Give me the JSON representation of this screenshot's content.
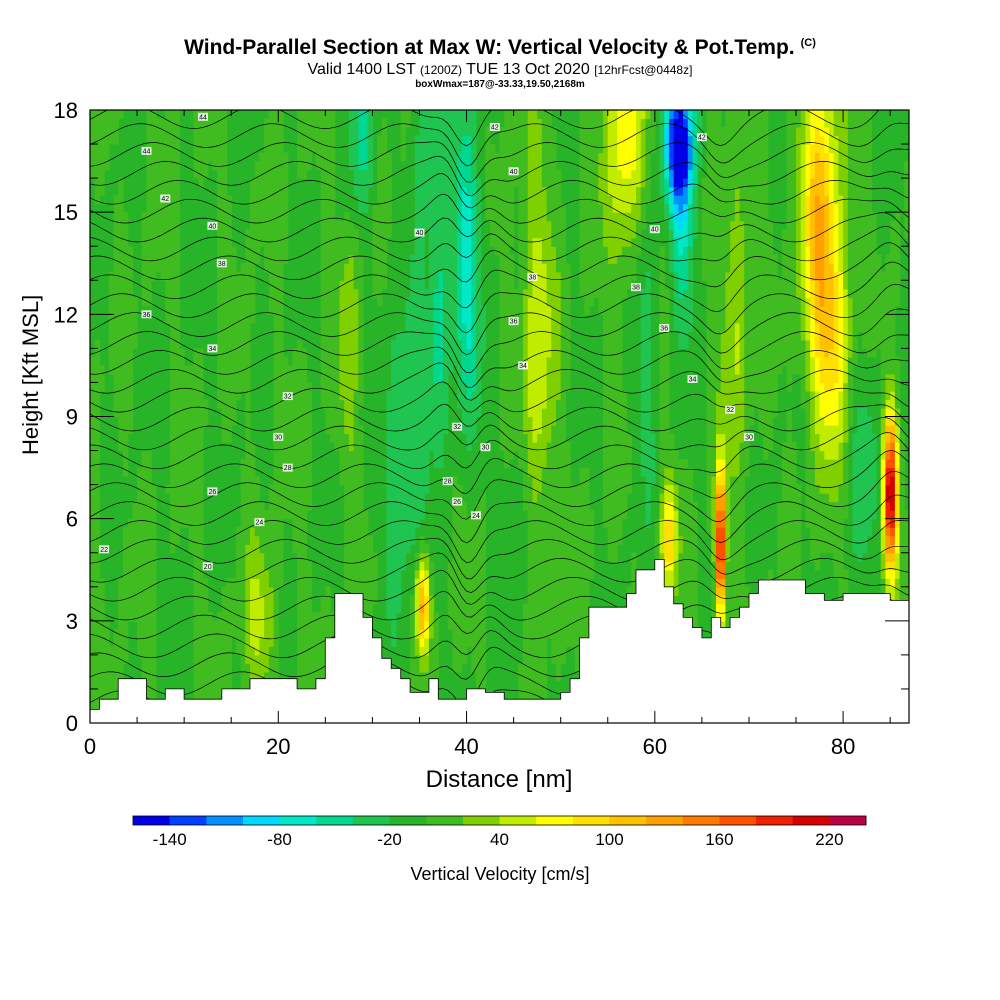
{
  "title": "Wind-Parallel Section at Max W: Vertical Velocity & Pot.Temp.",
  "title_mark": "(C)",
  "subtitle_main": "Valid 1400 LST",
  "subtitle_z": "(1200Z)",
  "subtitle_date": "TUE 13 Oct 2020",
  "subtitle_fcst": "[12hrFcst@0448z]",
  "subtitle_box": "boxWmax=187@-33.33,19.50,2168m",
  "chart_data": {
    "type": "heatmap",
    "xlabel": "Distance [nm]",
    "ylabel": "Height [Kft MSL]",
    "xlim": [
      0,
      87
    ],
    "ylim": [
      0,
      18
    ],
    "x_ticks": [
      0,
      20,
      40,
      60,
      80
    ],
    "y_ticks": [
      0,
      3,
      6,
      9,
      12,
      15,
      18
    ],
    "colorbar": {
      "label": "Vertical Velocity [cm/s]",
      "tick_labels": [
        "-140",
        "-80",
        "-20",
        "40",
        "100",
        "160",
        "220"
      ],
      "tick_values": [
        -140,
        -80,
        -20,
        40,
        100,
        160,
        220
      ],
      "bounds": [
        -160,
        -140,
        -120,
        -100,
        -80,
        -60,
        -40,
        -20,
        0,
        20,
        40,
        60,
        80,
        100,
        120,
        140,
        160,
        180,
        200,
        220,
        240
      ],
      "colors": [
        "#0000e6",
        "#0040ff",
        "#0090ff",
        "#00d8ff",
        "#00e8c8",
        "#00d890",
        "#20c450",
        "#28b428",
        "#40bc20",
        "#80d000",
        "#c0ec00",
        "#ffff00",
        "#ffe000",
        "#ffc000",
        "#ffa000",
        "#ff7800",
        "#ff5000",
        "#ee2000",
        "#d40000",
        "#bb0044"
      ]
    },
    "terrain_kft": [
      [
        0,
        0.4
      ],
      [
        1,
        0.7
      ],
      [
        3,
        1.3
      ],
      [
        5,
        1.3
      ],
      [
        6,
        0.7
      ],
      [
        7,
        0.7
      ],
      [
        8,
        1.0
      ],
      [
        10,
        0.7
      ],
      [
        12,
        0.7
      ],
      [
        14,
        1.0
      ],
      [
        17,
        1.3
      ],
      [
        20,
        1.3
      ],
      [
        22,
        1.0
      ],
      [
        24,
        1.3
      ],
      [
        25,
        2.5
      ],
      [
        26,
        3.8
      ],
      [
        28,
        3.8
      ],
      [
        29,
        3.1
      ],
      [
        30,
        2.5
      ],
      [
        31,
        1.9
      ],
      [
        32,
        1.6
      ],
      [
        33,
        1.3
      ],
      [
        34,
        0.9
      ],
      [
        36,
        1.3
      ],
      [
        37,
        0.7
      ],
      [
        38,
        0.7
      ],
      [
        40,
        1.0
      ],
      [
        42,
        0.9
      ],
      [
        44,
        0.7
      ],
      [
        48,
        0.7
      ],
      [
        50,
        0.9
      ],
      [
        51,
        1.3
      ],
      [
        52,
        2.5
      ],
      [
        53,
        3.4
      ],
      [
        55,
        3.4
      ],
      [
        57,
        3.8
      ],
      [
        58,
        4.5
      ],
      [
        60,
        4.8
      ],
      [
        61,
        4.0
      ],
      [
        62,
        3.5
      ],
      [
        63,
        3.1
      ],
      [
        64,
        2.8
      ],
      [
        65,
        2.5
      ],
      [
        66,
        3.1
      ],
      [
        67,
        2.8
      ],
      [
        68,
        3.1
      ],
      [
        69,
        3.4
      ],
      [
        70,
        3.8
      ],
      [
        71,
        4.2
      ],
      [
        74,
        4.2
      ],
      [
        76,
        3.8
      ],
      [
        78,
        3.6
      ],
      [
        80,
        3.8
      ],
      [
        84,
        3.8
      ],
      [
        85,
        3.6
      ],
      [
        87,
        3.4
      ]
    ],
    "contour_labels": [
      "44",
      "44",
      "42",
      "42",
      "42",
      "40",
      "40",
      "40",
      "40",
      "38",
      "38",
      "38",
      "36",
      "36",
      "36",
      "34",
      "34",
      "34",
      "32",
      "32",
      "32",
      "30",
      "30",
      "30",
      "28",
      "28",
      "26",
      "26",
      "24",
      "24",
      "22",
      "20"
    ]
  }
}
